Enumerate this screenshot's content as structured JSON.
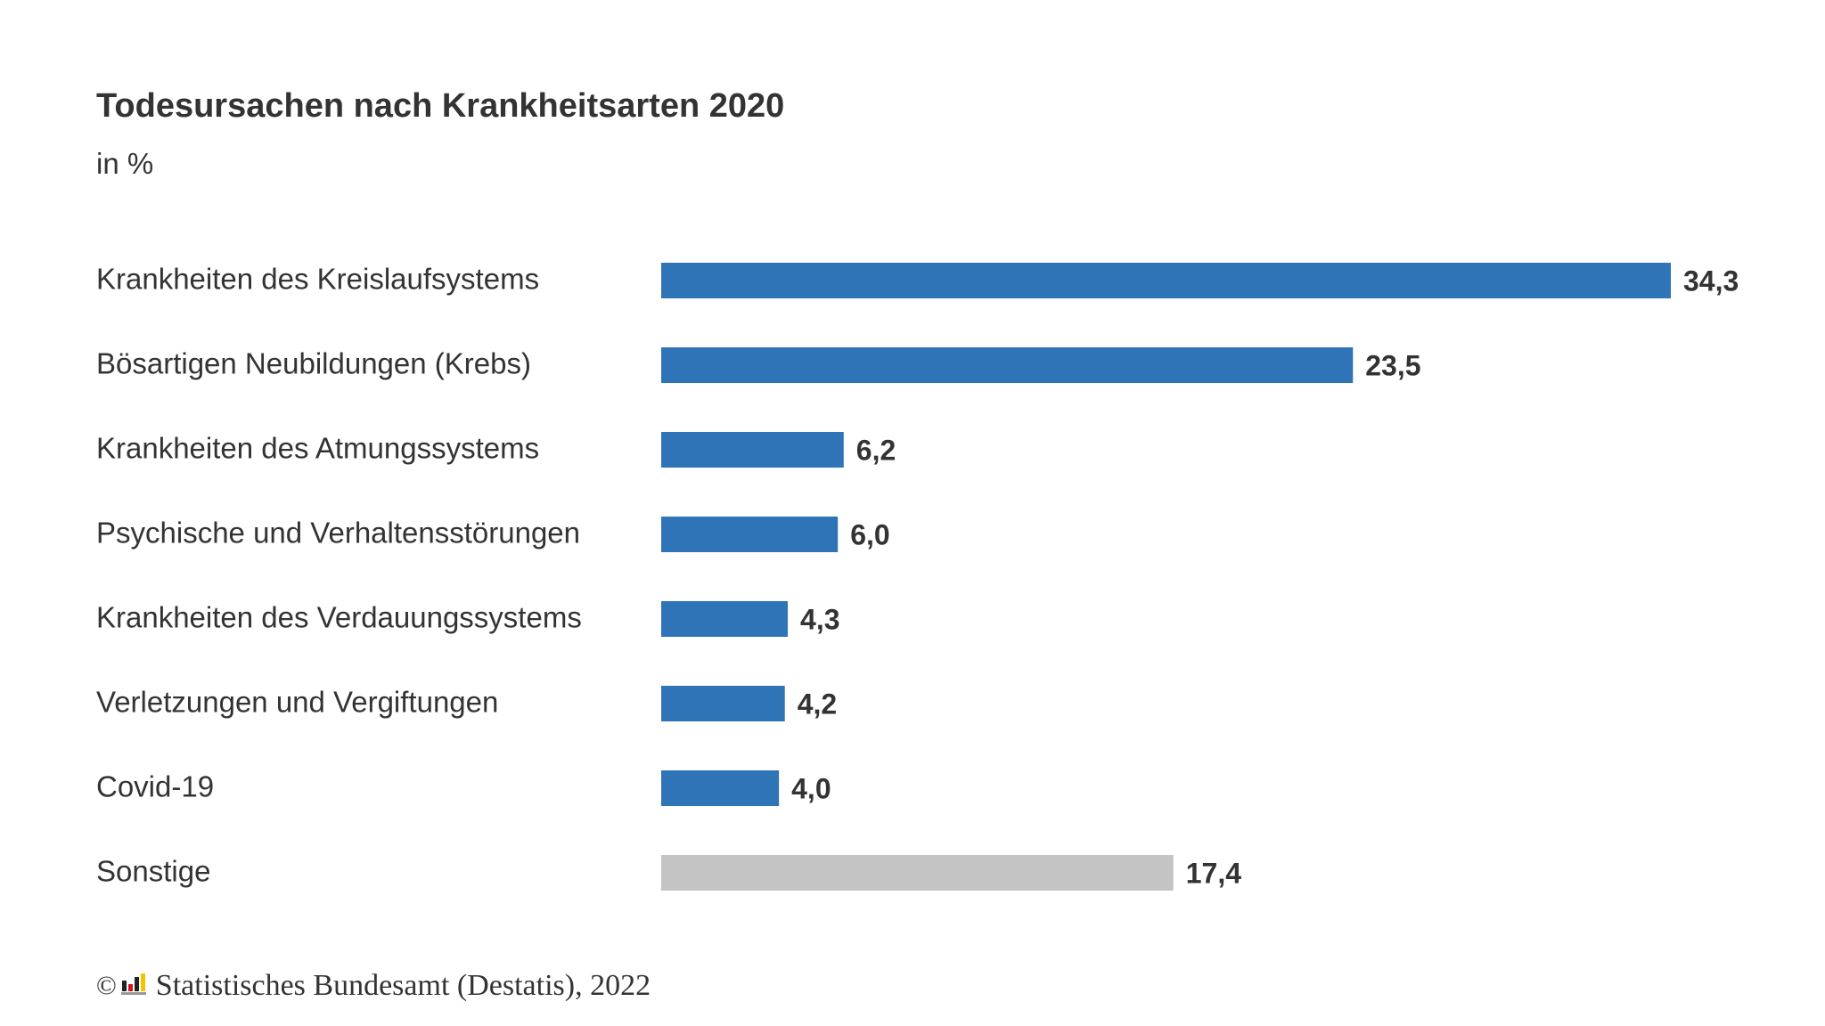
{
  "chart_data": {
    "type": "bar",
    "orientation": "horizontal",
    "title": "Todesursachen nach Krankheitsarten 2020",
    "subtitle": "in %",
    "categories": [
      "Krankheiten des Kreislaufsystems",
      "Bösartigen Neubildungen (Krebs)",
      "Krankheiten des Atmungssystems",
      "Psychische und Verhaltensstörungen",
      "Krankheiten des Verdauungssystems",
      "Verletzungen und Vergiftungen",
      "Covid-19",
      "Sonstige"
    ],
    "values": [
      34.3,
      23.5,
      6.2,
      6.0,
      4.3,
      4.2,
      4.0,
      17.4
    ],
    "value_labels": [
      "34,3",
      "23,5",
      "6,2",
      "6,0",
      "4,3",
      "4,2",
      "4,0",
      "17,4"
    ],
    "bar_colors": [
      "#2e74b7",
      "#2e74b7",
      "#2e74b7",
      "#2e74b7",
      "#2e74b7",
      "#2e74b7",
      "#2e74b7",
      "#c4c4c4"
    ],
    "xlim": [
      0,
      34.3
    ],
    "grid": false,
    "legend": "none"
  },
  "source": {
    "copyright_symbol": "©",
    "text": "Statistisches Bundesamt (Destatis), 2022",
    "logo_icon": "destatis-logo-icon"
  },
  "colors": {
    "primary_bar": "#2e74b7",
    "other_bar": "#c4c4c4",
    "text": "#333333"
  }
}
